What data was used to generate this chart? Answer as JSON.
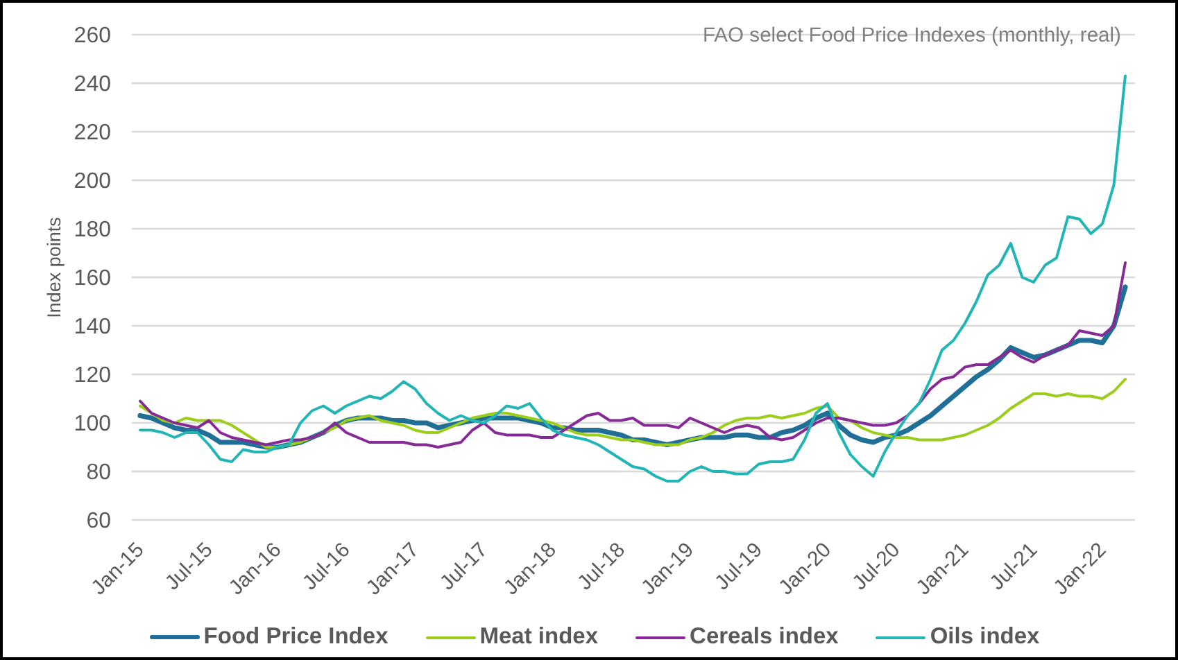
{
  "chart_data": {
    "type": "line",
    "title": "FAO select Food Price Indexes (monthly, real)",
    "ylabel": "Index points",
    "categories": [
      "Jan-15",
      null,
      null,
      null,
      null,
      null,
      "Jul-15",
      null,
      null,
      null,
      null,
      null,
      "Jan-16",
      null,
      null,
      null,
      null,
      null,
      "Jul-16",
      null,
      null,
      null,
      null,
      null,
      "Jan-17",
      null,
      null,
      null,
      null,
      null,
      "Jul-17",
      null,
      null,
      null,
      null,
      null,
      "Jan-18",
      null,
      null,
      null,
      null,
      null,
      "Jul-18",
      null,
      null,
      null,
      null,
      null,
      "Jan-19",
      null,
      null,
      null,
      null,
      null,
      "Jul-19",
      null,
      null,
      null,
      null,
      null,
      "Jan-20",
      null,
      null,
      null,
      null,
      null,
      "Jul-20",
      null,
      null,
      null,
      null,
      null,
      "Jan-21",
      null,
      null,
      null,
      null,
      null,
      "Jul-21",
      null,
      null,
      null,
      null,
      null,
      "Jan-22",
      null,
      null
    ],
    "ylim": [
      60,
      260
    ],
    "yticks": [
      60,
      80,
      100,
      120,
      140,
      160,
      180,
      200,
      220,
      240,
      260
    ],
    "grid": "y",
    "legend": "bottom",
    "marker": "none",
    "line_style": "solid",
    "series": [
      {
        "name": "Food Price Index",
        "color": "#206f96",
        "values": [
          103,
          102,
          100,
          98,
          97,
          97,
          95,
          92,
          92,
          92,
          91,
          90,
          90,
          91,
          92,
          94,
          96,
          99,
          101,
          102,
          102,
          102,
          101,
          101,
          100,
          100,
          98,
          99,
          100,
          101,
          102,
          102,
          102,
          102,
          101,
          100,
          98,
          98,
          97,
          97,
          97,
          96,
          95,
          93,
          93,
          92,
          91,
          92,
          93,
          94,
          94,
          94,
          95,
          95,
          94,
          94,
          96,
          97,
          99,
          102,
          104,
          99,
          95,
          93,
          92,
          94,
          95,
          97,
          100,
          103,
          107,
          111,
          115,
          119,
          122,
          126,
          131,
          129,
          127,
          128,
          130,
          132,
          134,
          134,
          133,
          140,
          156
        ]
      },
      {
        "name": "Meat index",
        "color": "#9ccc1c",
        "values": [
          107,
          104,
          101,
          100,
          102,
          101,
          101,
          101,
          99,
          96,
          93,
          90,
          90,
          91,
          92,
          94,
          96,
          98,
          101,
          102,
          103,
          101,
          100,
          99,
          97,
          96,
          96,
          98,
          100,
          102,
          103,
          104,
          104,
          103,
          102,
          101,
          100,
          98,
          96,
          95,
          95,
          94,
          93,
          93,
          92,
          91,
          91,
          91,
          93,
          94,
          96,
          99,
          101,
          102,
          102,
          103,
          102,
          103,
          104,
          106,
          107,
          102,
          101,
          98,
          96,
          95,
          94,
          94,
          93,
          93,
          93,
          94,
          95,
          97,
          99,
          102,
          106,
          109,
          112,
          112,
          111,
          112,
          111,
          111,
          110,
          113,
          118
        ]
      },
      {
        "name": "Cereals index",
        "color": "#862a96",
        "values": [
          109,
          104,
          102,
          100,
          99,
          98,
          101,
          96,
          94,
          93,
          92,
          91,
          92,
          93,
          93,
          94,
          96,
          100,
          96,
          94,
          92,
          92,
          92,
          92,
          91,
          91,
          90,
          91,
          92,
          97,
          100,
          96,
          95,
          95,
          95,
          94,
          94,
          97,
          100,
          103,
          104,
          101,
          101,
          102,
          99,
          99,
          99,
          98,
          102,
          100,
          98,
          96,
          98,
          99,
          98,
          94,
          93,
          94,
          97,
          100,
          102,
          102,
          101,
          100,
          99,
          99,
          100,
          103,
          108,
          114,
          118,
          119,
          123,
          124,
          124,
          127,
          130,
          127,
          125,
          128,
          130,
          132,
          138,
          137,
          136,
          140,
          166
        ]
      },
      {
        "name": "Oils index",
        "color": "#22b5b5",
        "values": [
          97,
          97,
          96,
          94,
          96,
          96,
          91,
          85,
          84,
          89,
          88,
          88,
          90,
          91,
          100,
          105,
          107,
          104,
          107,
          109,
          111,
          110,
          113,
          117,
          114,
          108,
          104,
          101,
          103,
          101,
          100,
          103,
          107,
          106,
          108,
          102,
          97,
          95,
          94,
          93,
          91,
          88,
          85,
          82,
          81,
          78,
          76,
          76,
          80,
          82,
          80,
          80,
          79,
          79,
          83,
          84,
          84,
          85,
          93,
          104,
          108,
          96,
          87,
          82,
          78,
          88,
          96,
          103,
          108,
          118,
          130,
          134,
          141,
          150,
          161,
          165,
          174,
          160,
          158,
          165,
          168,
          185,
          184,
          178,
          182,
          198,
          243
        ]
      }
    ]
  }
}
